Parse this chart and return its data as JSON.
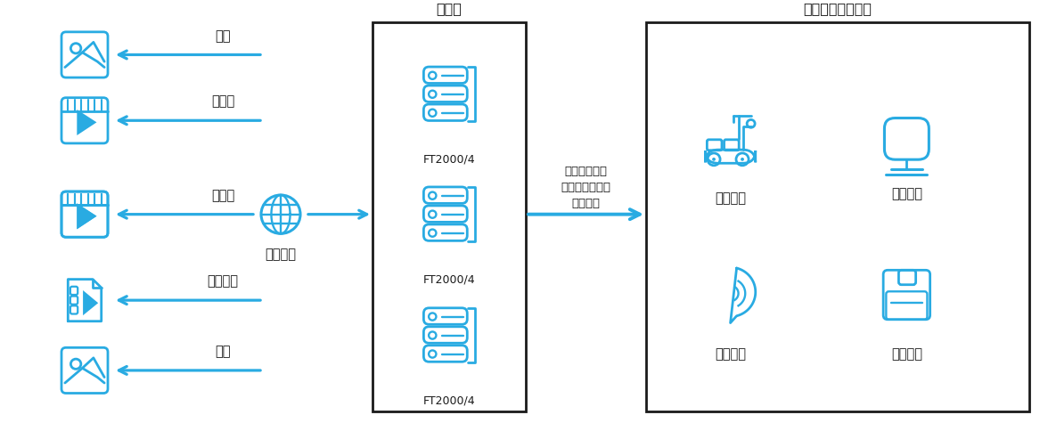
{
  "bg_color": "#ffffff",
  "icon_color": "#29ABE2",
  "border_color": "#1a1a1a",
  "text_color": "#1a1a1a",
  "arrow_color": "#29ABE2",
  "title_zhuhe": "主核心",
  "title_scene": "场景业务应用平台",
  "ft_label": "FT2000/4",
  "arrow_label": "人脸识别结果\n结构化分析结果\n捺拍小图",
  "network_label": "高速网络",
  "left_items": [
    {
      "label": "图片",
      "type": "image"
    },
    {
      "label": "视频流",
      "type": "video"
    },
    {
      "label": "视频流",
      "type": "video"
    },
    {
      "label": "视频文件",
      "type": "videofile"
    },
    {
      "label": "图片",
      "type": "image"
    }
  ],
  "right_items": [
    {
      "label": "智慧轨交",
      "type": "rail"
    },
    {
      "label": "智慧金融",
      "type": "finance"
    },
    {
      "label": "政务服务",
      "type": "gov"
    },
    {
      "label": "网络安全",
      "type": "netsec"
    }
  ],
  "figsize": [
    11.76,
    4.75
  ],
  "dpi": 100
}
